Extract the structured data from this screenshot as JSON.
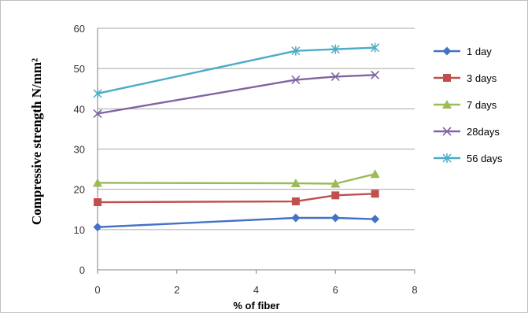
{
  "chart_data": {
    "type": "line",
    "title": "",
    "xlabel": "% of fiber",
    "ylabel": "Compressive strength N/mm²",
    "xlim": [
      0,
      8
    ],
    "ylim": [
      0,
      60
    ],
    "xticks": [
      "0",
      "2",
      "4",
      "6",
      "8"
    ],
    "yticks": [
      "0",
      "10",
      "20",
      "30",
      "40",
      "50",
      "60"
    ],
    "grid": "horizontal",
    "legend_position": "right",
    "x": [
      0,
      5,
      6,
      7
    ],
    "series": [
      {
        "name": "1 day",
        "values": [
          10.6,
          12.9,
          12.9,
          12.6
        ],
        "color": "#4472c4",
        "marker": "diamond"
      },
      {
        "name": "3 days",
        "values": [
          16.8,
          17.0,
          18.5,
          18.9
        ],
        "color": "#c0504d",
        "marker": "square"
      },
      {
        "name": "7 days",
        "values": [
          21.6,
          21.5,
          21.4,
          23.8
        ],
        "color": "#9bbb59",
        "marker": "triangle"
      },
      {
        "name": "28days",
        "values": [
          38.8,
          47.2,
          48.0,
          48.4
        ],
        "color": "#8064a2",
        "marker": "x"
      },
      {
        "name": "56 days",
        "values": [
          43.8,
          54.4,
          54.8,
          55.2
        ],
        "color": "#4bacc6",
        "marker": "star"
      }
    ]
  }
}
